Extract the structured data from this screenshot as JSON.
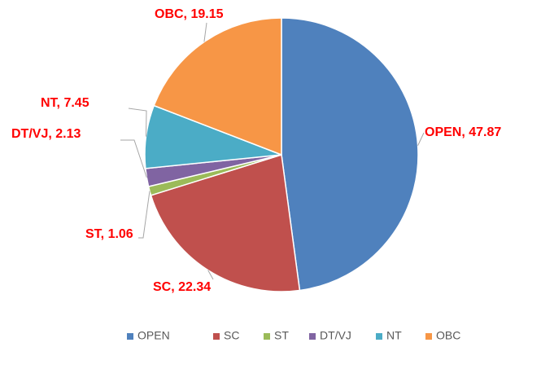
{
  "chart_data": {
    "type": "pie",
    "categories": [
      "OPEN",
      "SC",
      "ST",
      "DT/VJ",
      "NT",
      "OBC"
    ],
    "values": [
      47.87,
      22.34,
      1.06,
      2.13,
      7.45,
      19.15
    ],
    "value_labels": [
      "OPEN, 47.87",
      "SC, 22.34",
      "ST, 1.06",
      "DT/VJ, 2.13",
      "NT, 7.45",
      "OBC, 19.15"
    ],
    "colors": [
      "#4f81bd",
      "#c0504d",
      "#9bbb59",
      "#8064a2",
      "#4bacc6",
      "#f79646"
    ],
    "legend": "bottom"
  }
}
